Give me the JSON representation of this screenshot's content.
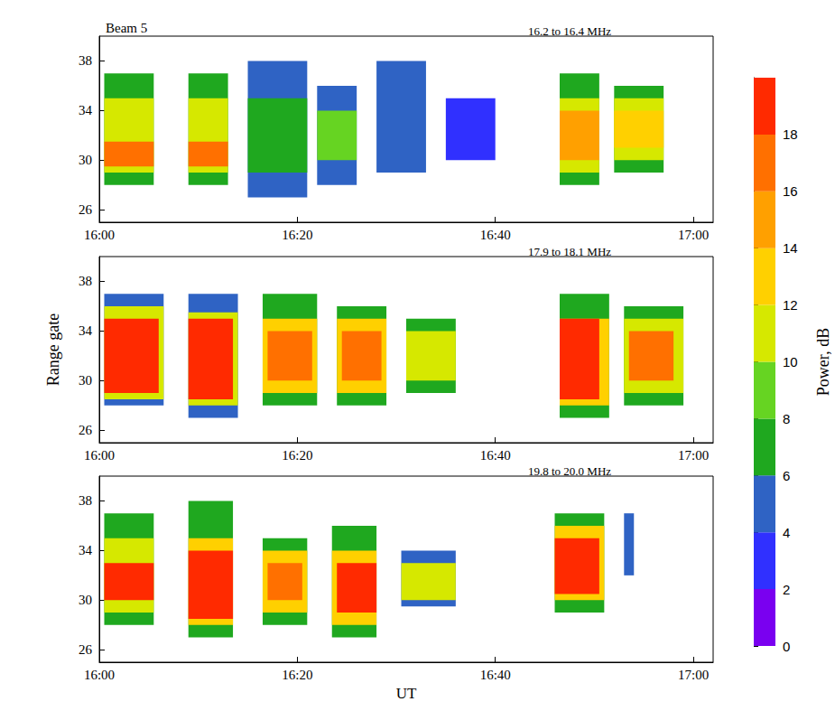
{
  "chart_data": {
    "type": "heatmap",
    "title": "Beam 5",
    "xlabel": "UT",
    "ylabel": "Range gate",
    "xlim": [
      0,
      62
    ],
    "xticks": [
      {
        "value": 0,
        "label": "16:00"
      },
      {
        "value": 20,
        "label": "16:20"
      },
      {
        "value": 40,
        "label": "16:40"
      },
      {
        "value": 60,
        "label": "17:00"
      }
    ],
    "ylim": [
      25,
      40
    ],
    "yticks": [
      26,
      30,
      34,
      38
    ],
    "colorbar": {
      "label": "Power, dB",
      "range": [
        0,
        20
      ],
      "ticks": [
        0,
        2,
        4,
        6,
        8,
        10,
        12,
        14,
        16,
        18
      ],
      "colors": [
        "#7a00f0",
        "#3030ff",
        "#2f63c4",
        "#1fa81f",
        "#66d422",
        "#d6e800",
        "#ffd000",
        "#ffa000",
        "#ff7000",
        "#ff2a00"
      ]
    },
    "panels": [
      {
        "subtitle": "16.2 to 16.4 MHz",
        "blocks": [
          [
            0.5,
            5.5,
            28,
            37,
            6
          ],
          [
            0.5,
            5.5,
            29,
            35,
            10
          ],
          [
            0.5,
            5.5,
            29.5,
            31.5,
            16
          ],
          [
            9,
            13,
            28,
            37,
            6
          ],
          [
            9,
            13,
            29,
            35,
            10
          ],
          [
            9,
            13,
            29.5,
            31.5,
            16
          ],
          [
            15,
            21,
            27,
            38,
            4
          ],
          [
            15,
            21,
            29,
            35,
            7
          ],
          [
            22,
            26,
            28,
            36,
            4
          ],
          [
            22,
            26,
            30,
            34,
            8
          ],
          [
            28,
            33,
            29,
            38,
            4
          ],
          [
            35,
            40,
            30,
            35,
            3
          ],
          [
            46.5,
            50.5,
            28,
            37,
            6
          ],
          [
            46.5,
            50.5,
            29,
            35,
            10
          ],
          [
            46.5,
            50.5,
            30,
            34,
            14
          ],
          [
            52,
            57,
            29,
            36,
            6
          ],
          [
            52,
            57,
            30,
            35,
            10
          ],
          [
            52,
            57,
            31,
            34,
            13
          ]
        ]
      },
      {
        "subtitle": "17.9 to 18.1 MHz",
        "blocks": [
          [
            0.5,
            6.5,
            28,
            37,
            5
          ],
          [
            0.5,
            6.5,
            28.5,
            36,
            10
          ],
          [
            0.5,
            6,
            29,
            35,
            19
          ],
          [
            9,
            14,
            27,
            37,
            5
          ],
          [
            9,
            14,
            28,
            35.5,
            10
          ],
          [
            9,
            13.5,
            28.5,
            35,
            19
          ],
          [
            16.5,
            22,
            28,
            37,
            6
          ],
          [
            16.5,
            22,
            29,
            35,
            12
          ],
          [
            17,
            21.5,
            30,
            34,
            16
          ],
          [
            24,
            29,
            28,
            36,
            6
          ],
          [
            24,
            29,
            29,
            35,
            12
          ],
          [
            24.5,
            28.5,
            30,
            34,
            17
          ],
          [
            31,
            36,
            29,
            35,
            6
          ],
          [
            31,
            36,
            30,
            34,
            11
          ],
          [
            46.5,
            51.5,
            27,
            37,
            6
          ],
          [
            46.5,
            51.5,
            28,
            35,
            12
          ],
          [
            46.5,
            50.5,
            28.5,
            35,
            19
          ],
          [
            53,
            59,
            28,
            36,
            6
          ],
          [
            53,
            59,
            29,
            35,
            11
          ],
          [
            53.5,
            58,
            30,
            34,
            17
          ]
        ]
      },
      {
        "subtitle": "19.8 to 20.0 MHz",
        "blocks": [
          [
            0.5,
            5.5,
            28,
            37,
            6
          ],
          [
            0.5,
            5.5,
            29,
            35,
            11
          ],
          [
            0.5,
            5.5,
            30,
            33,
            19
          ],
          [
            9,
            13.5,
            27,
            38,
            6
          ],
          [
            9,
            13.5,
            28,
            35,
            12
          ],
          [
            9,
            13.5,
            28.5,
            34,
            19
          ],
          [
            16.5,
            21,
            28,
            35,
            6
          ],
          [
            16.5,
            21,
            29,
            34,
            12
          ],
          [
            17,
            20.5,
            30,
            33,
            16
          ],
          [
            23.5,
            28,
            27,
            36,
            6
          ],
          [
            23.5,
            28,
            28,
            34,
            12
          ],
          [
            24,
            28,
            29,
            33,
            18
          ],
          [
            30.5,
            36,
            29.5,
            34,
            5
          ],
          [
            30.5,
            36,
            30,
            33,
            11
          ],
          [
            46,
            51,
            29,
            37,
            6
          ],
          [
            46,
            51,
            30,
            36,
            12
          ],
          [
            46,
            50.5,
            30.5,
            35,
            19
          ],
          [
            53,
            54,
            32,
            37,
            5
          ]
        ]
      }
    ]
  }
}
